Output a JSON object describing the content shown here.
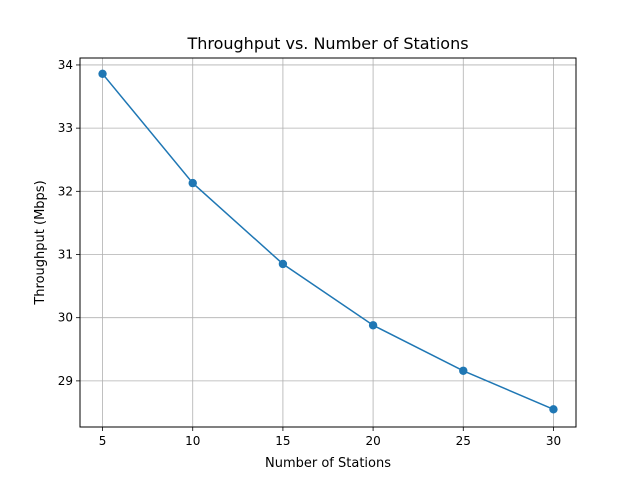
{
  "chart_data": {
    "type": "line",
    "title": "Throughput vs. Number of Stations",
    "xlabel": "Number of Stations",
    "ylabel": "Throughput (Mbps)",
    "x": [
      5,
      10,
      15,
      20,
      25,
      30
    ],
    "series": [
      {
        "name": "Throughput",
        "values": [
          33.86,
          32.13,
          30.85,
          29.88,
          29.16,
          28.55
        ],
        "color": "#1f77b4",
        "marker": "circle"
      }
    ],
    "xticks": [
      5,
      10,
      15,
      20,
      25,
      30
    ],
    "yticks": [
      29,
      30,
      31,
      32,
      33,
      34
    ],
    "xlim": [
      3.75,
      31.25
    ],
    "ylim": [
      28.27,
      34.11
    ],
    "grid": true,
    "legend": "none"
  }
}
